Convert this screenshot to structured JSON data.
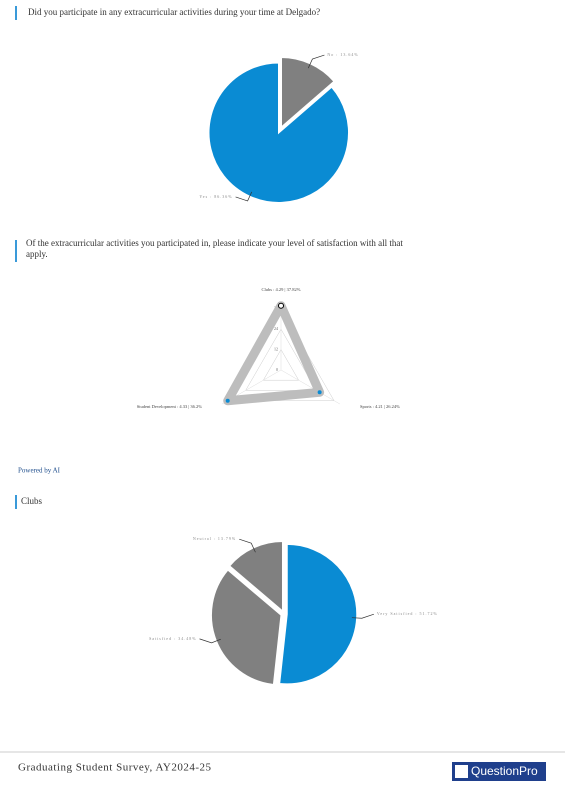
{
  "chart_data": [
    {
      "type": "pie",
      "title": "Did you participate in any extracurricular activities during your time at Delgado?",
      "categories": [
        "No : 13.64%",
        "Yes : 86.36%"
      ],
      "values": [
        13.64,
        86.36
      ],
      "colors": [
        "#808080",
        "#0a8bd3"
      ]
    },
    {
      "type": "radar",
      "title": "Of the extracurricular activities you participated in, please indicate your level of satisfaction with all that apply.",
      "categories": [
        "Clubs : 4.29 | 37.82%",
        "Sports : 4.21 | 26.24%",
        "Student Development : 4.33 | 36.2%"
      ],
      "values": [
        37.82,
        26.24,
        36.2
      ],
      "ylim": [
        0,
        40
      ],
      "yticks": [
        0,
        12,
        24,
        36
      ],
      "color": "#bdbdbd"
    },
    {
      "type": "pie",
      "title": "Clubs",
      "categories": [
        "Very Satisfied : 51.72%",
        "Satisfied : 34.48%",
        "Neutral : 13.79%"
      ],
      "values": [
        51.72,
        34.48,
        13.79
      ],
      "colors": [
        "#0a8bd3",
        "#808080",
        "#808080"
      ]
    }
  ],
  "powered_by": "Powered by AI",
  "footer": {
    "survey": "Graduating Student Survey, AY2024-25",
    "logo": "QuestionPro"
  }
}
